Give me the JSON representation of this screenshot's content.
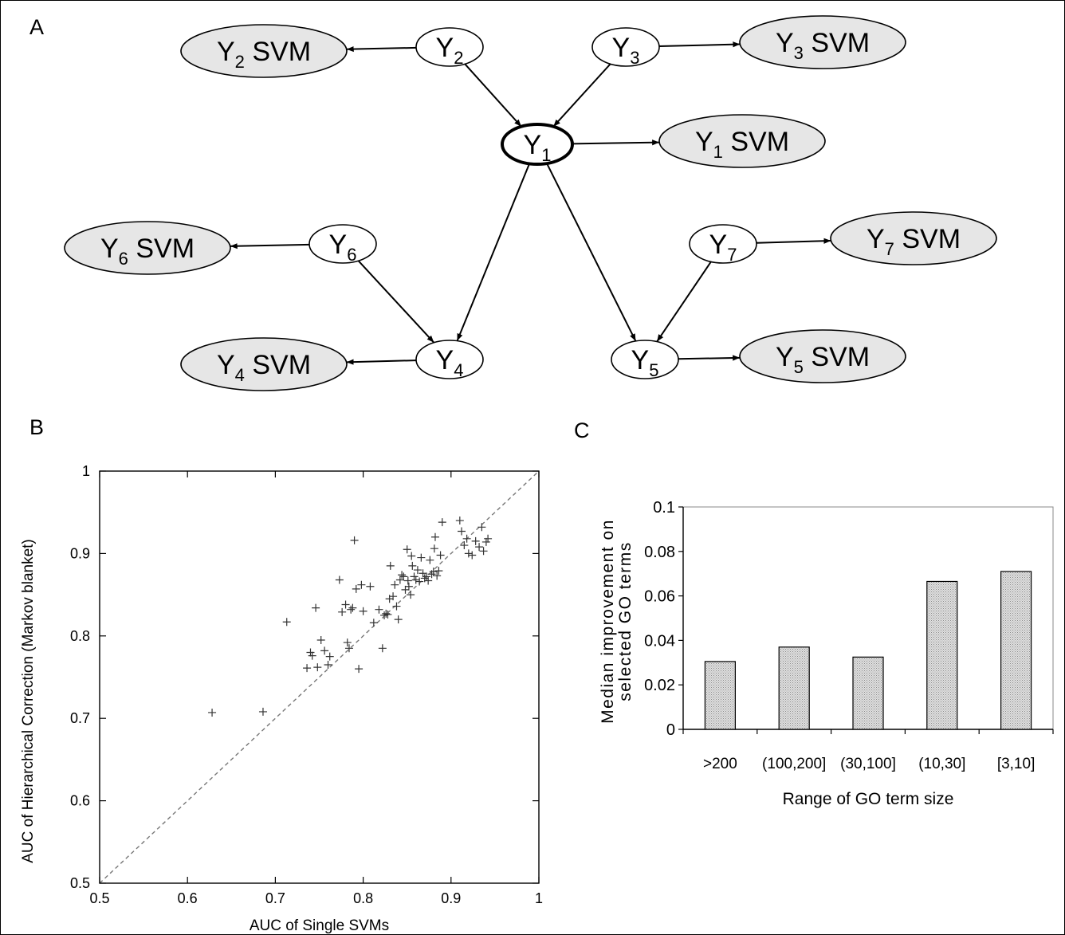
{
  "figure": {
    "panel_labels": {
      "a": "A",
      "b": "B",
      "c": "C"
    }
  },
  "network": {
    "variable_symbol": "Y",
    "suffix": "SVM",
    "nodes": [
      {
        "id": "Y1",
        "index": "1",
        "query": true
      },
      {
        "id": "Y2",
        "index": "2"
      },
      {
        "id": "Y3",
        "index": "3"
      },
      {
        "id": "Y4",
        "index": "4"
      },
      {
        "id": "Y5",
        "index": "5"
      },
      {
        "id": "Y6",
        "index": "6"
      },
      {
        "id": "Y7",
        "index": "7"
      }
    ],
    "svm_nodes": [
      {
        "id": "Y1SVM",
        "index": "1"
      },
      {
        "id": "Y2SVM",
        "index": "2"
      },
      {
        "id": "Y3SVM",
        "index": "3"
      },
      {
        "id": "Y4SVM",
        "index": "4"
      },
      {
        "id": "Y5SVM",
        "index": "5"
      },
      {
        "id": "Y6SVM",
        "index": "6"
      },
      {
        "id": "Y7SVM",
        "index": "7"
      }
    ],
    "edges": [
      [
        "Y2",
        "Y1"
      ],
      [
        "Y3",
        "Y1"
      ],
      [
        "Y1",
        "Y4"
      ],
      [
        "Y1",
        "Y5"
      ],
      [
        "Y6",
        "Y4"
      ],
      [
        "Y7",
        "Y5"
      ],
      [
        "Y1",
        "Y1SVM"
      ],
      [
        "Y2",
        "Y2SVM"
      ],
      [
        "Y3",
        "Y3SVM"
      ],
      [
        "Y4",
        "Y4SVM"
      ],
      [
        "Y5",
        "Y5SVM"
      ],
      [
        "Y6",
        "Y6SVM"
      ],
      [
        "Y7",
        "Y7SVM"
      ]
    ],
    "colors": {
      "svm_fill": "#e6e6e6",
      "node_fill": "#ffffff",
      "stroke": "#000000"
    }
  },
  "chart_data": [
    {
      "type": "scatter",
      "xlabel": "AUC of Single SVMs",
      "ylabel": "AUC of Hierarchical Correction (Markov blanket)",
      "xlim": [
        0.5,
        1
      ],
      "ylim": [
        0.5,
        1
      ],
      "xticks": [
        "0.5",
        "0.6",
        "0.7",
        "0.8",
        "0.9",
        "1"
      ],
      "yticks": [
        "0.5",
        "0.6",
        "0.7",
        "0.8",
        "0.9",
        "1"
      ],
      "marker": "+",
      "diagonal_reference": true,
      "grid": false,
      "points": [
        [
          0.628,
          0.707
        ],
        [
          0.686,
          0.708
        ],
        [
          0.713,
          0.817
        ],
        [
          0.736,
          0.761
        ],
        [
          0.74,
          0.78
        ],
        [
          0.742,
          0.776
        ],
        [
          0.746,
          0.834
        ],
        [
          0.748,
          0.762
        ],
        [
          0.752,
          0.795
        ],
        [
          0.756,
          0.782
        ],
        [
          0.76,
          0.765
        ],
        [
          0.762,
          0.775
        ],
        [
          0.773,
          0.868
        ],
        [
          0.776,
          0.829
        ],
        [
          0.78,
          0.838
        ],
        [
          0.782,
          0.792
        ],
        [
          0.784,
          0.785
        ],
        [
          0.786,
          0.832
        ],
        [
          0.788,
          0.834
        ],
        [
          0.79,
          0.916
        ],
        [
          0.792,
          0.857
        ],
        [
          0.795,
          0.76
        ],
        [
          0.798,
          0.862
        ],
        [
          0.8,
          0.83
        ],
        [
          0.808,
          0.86
        ],
        [
          0.812,
          0.816
        ],
        [
          0.818,
          0.832
        ],
        [
          0.822,
          0.785
        ],
        [
          0.824,
          0.825
        ],
        [
          0.826,
          0.827
        ],
        [
          0.828,
          0.826
        ],
        [
          0.83,
          0.845
        ],
        [
          0.831,
          0.885
        ],
        [
          0.834,
          0.848
        ],
        [
          0.836,
          0.862
        ],
        [
          0.838,
          0.836
        ],
        [
          0.84,
          0.82
        ],
        [
          0.842,
          0.868
        ],
        [
          0.844,
          0.874
        ],
        [
          0.846,
          0.872
        ],
        [
          0.848,
          0.856
        ],
        [
          0.85,
          0.905
        ],
        [
          0.851,
          0.867
        ],
        [
          0.852,
          0.86
        ],
        [
          0.854,
          0.85
        ],
        [
          0.855,
          0.897
        ],
        [
          0.856,
          0.885
        ],
        [
          0.858,
          0.872
        ],
        [
          0.86,
          0.868
        ],
        [
          0.862,
          0.88
        ],
        [
          0.864,
          0.866
        ],
        [
          0.866,
          0.895
        ],
        [
          0.868,
          0.876
        ],
        [
          0.87,
          0.87
        ],
        [
          0.872,
          0.872
        ],
        [
          0.874,
          0.867
        ],
        [
          0.876,
          0.892
        ],
        [
          0.878,
          0.875
        ],
        [
          0.88,
          0.878
        ],
        [
          0.881,
          0.906
        ],
        [
          0.882,
          0.92
        ],
        [
          0.884,
          0.873
        ],
        [
          0.886,
          0.879
        ],
        [
          0.888,
          0.898
        ],
        [
          0.89,
          0.938
        ],
        [
          0.91,
          0.94
        ],
        [
          0.912,
          0.927
        ],
        [
          0.915,
          0.91
        ],
        [
          0.918,
          0.918
        ],
        [
          0.92,
          0.9
        ],
        [
          0.924,
          0.898
        ],
        [
          0.928,
          0.915
        ],
        [
          0.932,
          0.908
        ],
        [
          0.935,
          0.932
        ],
        [
          0.937,
          0.903
        ],
        [
          0.94,
          0.914
        ],
        [
          0.942,
          0.918
        ]
      ]
    },
    {
      "type": "bar",
      "ylabel": "Median improvement on selected GO terms",
      "xlabel": "Range of GO term size",
      "categories": [
        ">200",
        "(100,200]",
        "(30,100]",
        "(10,30]",
        "[3,10]"
      ],
      "values": [
        0.0305,
        0.037,
        0.0325,
        0.0665,
        0.071
      ],
      "ylim": [
        0,
        0.1
      ],
      "yticks": [
        "0",
        "0.02",
        "0.04",
        "0.06",
        "0.08",
        "0.1"
      ],
      "bar_fill": "#d4d4d4",
      "grid": false
    }
  ]
}
